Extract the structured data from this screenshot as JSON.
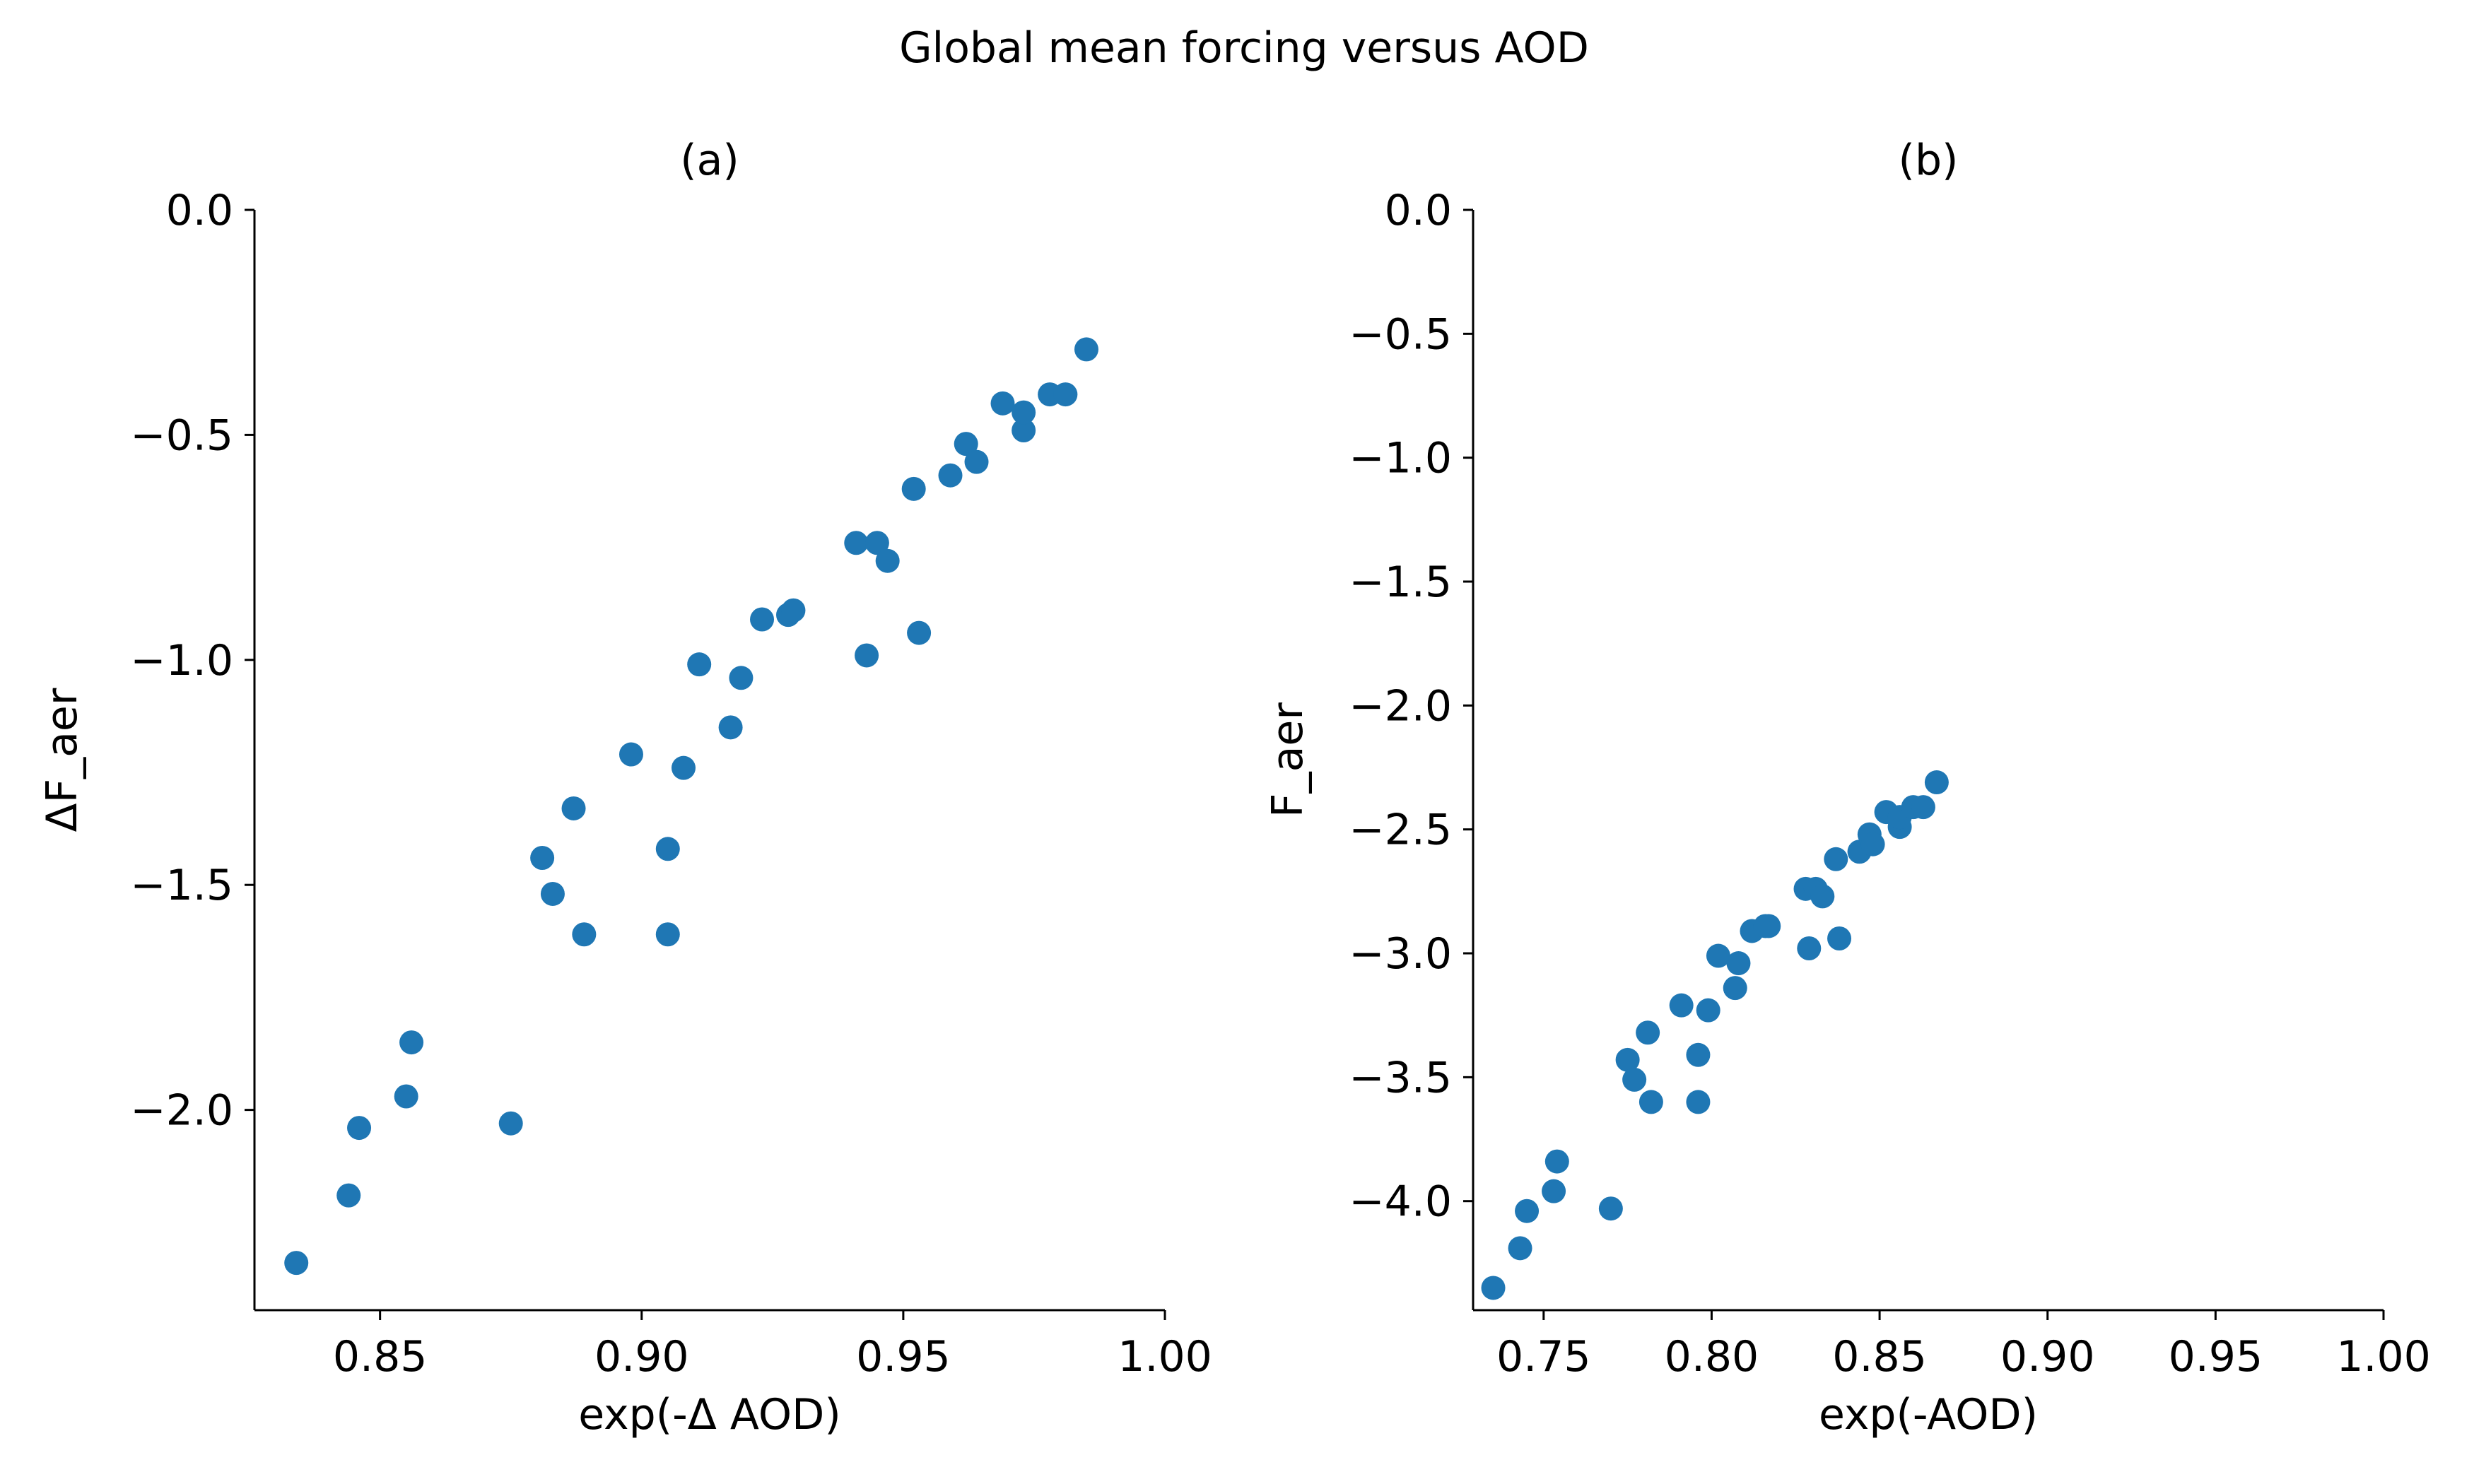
{
  "figure": {
    "title": "Global mean forcing versus AOD"
  },
  "chart_data": [
    {
      "type": "scatter",
      "title": "(a)",
      "xlabel": "exp(-Δ AOD)",
      "ylabel": "ΔF_aer",
      "xlim": [
        0.826,
        1.0
      ],
      "ylim": [
        -2.445,
        0.0
      ],
      "xticks": [
        "0.85",
        "0.90",
        "0.95",
        "1.00"
      ],
      "xtick_values": [
        0.85,
        0.9,
        0.95,
        1.0
      ],
      "yticks": [
        "0.0",
        "−0.5",
        "−1.0",
        "−1.5",
        "−2.0"
      ],
      "ytick_values": [
        0.0,
        -0.5,
        -1.0,
        -1.5,
        -2.0
      ],
      "grid": false,
      "color": "#1f77b4",
      "points": [
        {
          "x": 0.834,
          "y": -2.34
        },
        {
          "x": 0.844,
          "y": -2.19
        },
        {
          "x": 0.846,
          "y": -2.04
        },
        {
          "x": 0.855,
          "y": -1.97
        },
        {
          "x": 0.856,
          "y": -1.85
        },
        {
          "x": 0.875,
          "y": -2.03
        },
        {
          "x": 0.881,
          "y": -1.44
        },
        {
          "x": 0.883,
          "y": -1.52
        },
        {
          "x": 0.887,
          "y": -1.33
        },
        {
          "x": 0.889,
          "y": -1.61
        },
        {
          "x": 0.898,
          "y": -1.21
        },
        {
          "x": 0.905,
          "y": -1.42
        },
        {
          "x": 0.905,
          "y": -1.61
        },
        {
          "x": 0.908,
          "y": -1.24
        },
        {
          "x": 0.911,
          "y": -1.01
        },
        {
          "x": 0.917,
          "y": -1.15
        },
        {
          "x": 0.919,
          "y": -1.04
        },
        {
          "x": 0.923,
          "y": -0.91
        },
        {
          "x": 0.928,
          "y": -0.9
        },
        {
          "x": 0.929,
          "y": -0.89
        },
        {
          "x": 0.941,
          "y": -0.74
        },
        {
          "x": 0.943,
          "y": -0.99
        },
        {
          "x": 0.945,
          "y": -0.74
        },
        {
          "x": 0.947,
          "y": -0.78
        },
        {
          "x": 0.952,
          "y": -0.62
        },
        {
          "x": 0.953,
          "y": -0.94
        },
        {
          "x": 0.959,
          "y": -0.59
        },
        {
          "x": 0.962,
          "y": -0.52
        },
        {
          "x": 0.964,
          "y": -0.56
        },
        {
          "x": 0.969,
          "y": -0.43
        },
        {
          "x": 0.973,
          "y": -0.49
        },
        {
          "x": 0.973,
          "y": -0.45
        },
        {
          "x": 0.978,
          "y": -0.41
        },
        {
          "x": 0.981,
          "y": -0.41
        },
        {
          "x": 0.985,
          "y": -0.31
        }
      ]
    },
    {
      "type": "scatter",
      "title": "(b)",
      "xlabel": "exp(-AOD)",
      "ylabel": "F_aer",
      "xlim": [
        0.729,
        1.0
      ],
      "ylim": [
        -4.44,
        0.0
      ],
      "xticks": [
        "0.75",
        "0.80",
        "0.85",
        "0.90",
        "0.95",
        "1.00"
      ],
      "xtick_values": [
        0.75,
        0.8,
        0.85,
        0.9,
        0.95,
        1.0
      ],
      "yticks": [
        "0.0",
        "−0.5",
        "−1.0",
        "−1.5",
        "−2.0",
        "−2.5",
        "−3.0",
        "−3.5",
        "−4.0"
      ],
      "ytick_values": [
        0.0,
        -0.5,
        -1.0,
        -1.5,
        -2.0,
        -2.5,
        -3.0,
        -3.5,
        -4.0
      ],
      "grid": false,
      "color": "#1f77b4",
      "points": [
        {
          "x": 0.735,
          "y": -4.35
        },
        {
          "x": 0.743,
          "y": -4.19
        },
        {
          "x": 0.745,
          "y": -4.04
        },
        {
          "x": 0.753,
          "y": -3.96
        },
        {
          "x": 0.754,
          "y": -3.84
        },
        {
          "x": 0.77,
          "y": -4.03
        },
        {
          "x": 0.775,
          "y": -3.43
        },
        {
          "x": 0.777,
          "y": -3.51
        },
        {
          "x": 0.781,
          "y": -3.32
        },
        {
          "x": 0.782,
          "y": -3.6
        },
        {
          "x": 0.791,
          "y": -3.21
        },
        {
          "x": 0.796,
          "y": -3.41
        },
        {
          "x": 0.796,
          "y": -3.6
        },
        {
          "x": 0.799,
          "y": -3.23
        },
        {
          "x": 0.802,
          "y": -3.01
        },
        {
          "x": 0.807,
          "y": -3.14
        },
        {
          "x": 0.808,
          "y": -3.04
        },
        {
          "x": 0.812,
          "y": -2.91
        },
        {
          "x": 0.816,
          "y": -2.89
        },
        {
          "x": 0.817,
          "y": -2.89
        },
        {
          "x": 0.828,
          "y": -2.74
        },
        {
          "x": 0.829,
          "y": -2.98
        },
        {
          "x": 0.831,
          "y": -2.74
        },
        {
          "x": 0.833,
          "y": -2.77
        },
        {
          "x": 0.837,
          "y": -2.62
        },
        {
          "x": 0.838,
          "y": -2.94
        },
        {
          "x": 0.844,
          "y": -2.59
        },
        {
          "x": 0.847,
          "y": -2.52
        },
        {
          "x": 0.848,
          "y": -2.56
        },
        {
          "x": 0.852,
          "y": -2.43
        },
        {
          "x": 0.856,
          "y": -2.49
        },
        {
          "x": 0.856,
          "y": -2.45
        },
        {
          "x": 0.86,
          "y": -2.41
        },
        {
          "x": 0.863,
          "y": -2.41
        },
        {
          "x": 0.867,
          "y": -2.31
        }
      ]
    }
  ]
}
